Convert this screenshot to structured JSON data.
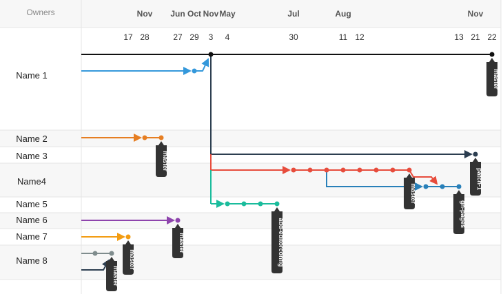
{
  "header": {
    "owners_label": "Owners"
  },
  "timeline": {
    "months": [
      "Nov",
      "Jun",
      "Oct",
      "Nov",
      "May",
      "Jul",
      "Aug",
      "Nov"
    ],
    "days": [
      "17",
      "28",
      "27",
      "29",
      "3",
      "4",
      "30",
      "11",
      "12",
      "13",
      "21",
      "22"
    ]
  },
  "owners": [
    "Name 1",
    "Name 2",
    "Name 3",
    "Name4",
    "Name 5",
    "Name 6",
    "Name 7",
    "Name 8"
  ],
  "branch_tags": [
    "master",
    "master",
    "patch-1",
    "master",
    "gh-pages",
    "add-editorconfig",
    "master",
    "master",
    "master",
    "master"
  ],
  "colors": {
    "black": "#111111",
    "blue": "#3498db",
    "orange": "#e67e22",
    "navy": "#2c3e50",
    "red": "#e74c3c",
    "steel": "#2980b9",
    "teal": "#1abc9c",
    "purple": "#8e44ad",
    "amber": "#f39c12",
    "gray": "#7f8c8d",
    "tag_bg": "#333333",
    "grid": "#e6e6e6",
    "band": "#f7f7f7"
  }
}
